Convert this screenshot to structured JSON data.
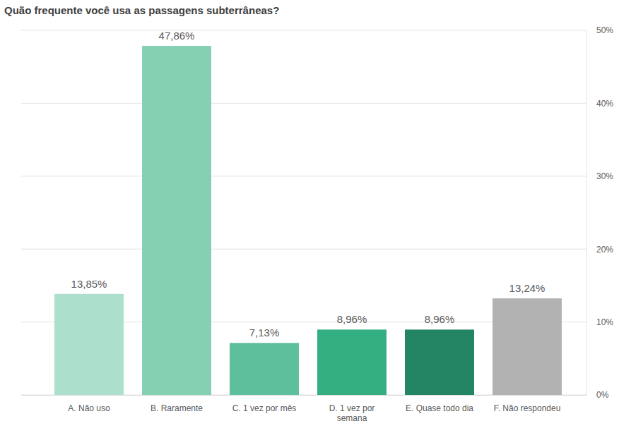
{
  "chart_data": {
    "type": "bar",
    "title": "Quão frequente você usa as passagens subterrâneas?",
    "categories": [
      "A. Não uso",
      "B. Raramente",
      "C. 1 vez por mês",
      "D. 1 vez por semana",
      "E. Quase todo dia",
      "F. Não respondeu"
    ],
    "values": [
      13.85,
      47.86,
      7.13,
      8.96,
      8.96,
      13.24
    ],
    "value_labels": [
      "13,85%",
      "47,86%",
      "7,13%",
      "8,96%",
      "8,96%",
      "13,24%"
    ],
    "colors": [
      "#acdfcc",
      "#85cfb2",
      "#5dbf9b",
      "#34af82",
      "#238563",
      "#b2b2b2"
    ],
    "ylim": [
      0,
      50
    ],
    "yticks": [
      {
        "value": 0,
        "label": "0%"
      },
      {
        "value": 10,
        "label": "10%"
      },
      {
        "value": 20,
        "label": "20%"
      },
      {
        "value": 30,
        "label": "30%"
      },
      {
        "value": 40,
        "label": "40%"
      },
      {
        "value": 50,
        "label": "50%"
      }
    ],
    "grid": true,
    "data_labels": true
  }
}
